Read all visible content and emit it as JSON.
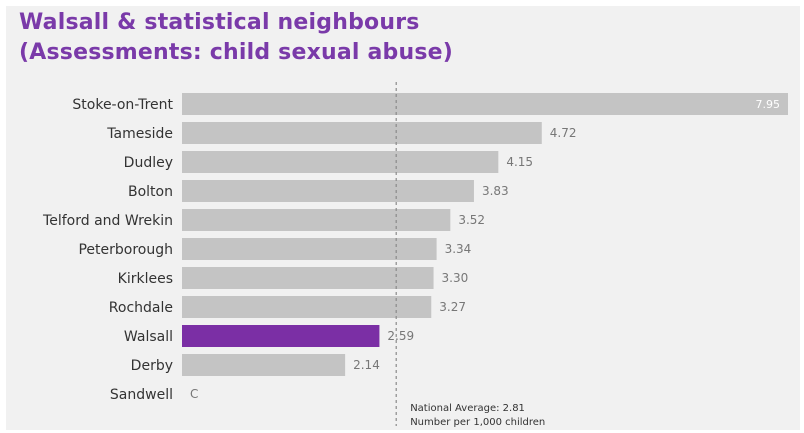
{
  "chart_data": {
    "type": "bar",
    "orientation": "horizontal",
    "title_lines": [
      "Walsall & statistical neighbours",
      "(Assessments: child sexual abuse)"
    ],
    "categories": [
      "Stoke-on-Trent",
      "Tameside",
      "Dudley",
      "Bolton",
      "Telford and Wrekin",
      "Peterborough",
      "Kirklees",
      "Rochdale",
      "Walsall",
      "Derby",
      "Sandwell"
    ],
    "values": [
      7.95,
      4.72,
      4.15,
      3.83,
      3.52,
      3.34,
      3.3,
      3.27,
      2.59,
      2.14,
      0
    ],
    "labels": [
      "7.95",
      "4.72",
      "4.15",
      "3.83",
      "3.52",
      "3.34",
      "3.30",
      "3.27",
      "2.59",
      "2.14",
      "C"
    ],
    "highlight": "Walsall",
    "reference_line": {
      "value": 2.81,
      "style": "dashed",
      "label_lines": [
        "National Average: 2.81",
        "Number per 1,000 children"
      ]
    },
    "xlim": [
      0,
      7.95
    ],
    "grid": false,
    "legend": "none"
  },
  "colors": {
    "title": "#7a3aa9",
    "bar": "#c4c4c4",
    "highlight_bar": "#7b2fa5",
    "reference_line": "#8a8a8a",
    "background": "#f1f1f1"
  }
}
